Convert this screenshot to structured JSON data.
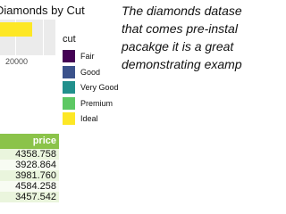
{
  "figure": {
    "title": "Diamonds by Cut",
    "x_tick": "20000",
    "legend_title": "cut",
    "legend": [
      {
        "label": "Fair",
        "color": "#440154"
      },
      {
        "label": "Good",
        "color": "#3b528b"
      },
      {
        "label": "Very Good",
        "color": "#21908c"
      },
      {
        "label": "Premium",
        "color": "#5dc863"
      },
      {
        "label": "Ideal",
        "color": "#fde725"
      }
    ]
  },
  "table": {
    "header": "price",
    "rows": [
      "4358.758",
      "3928.864",
      "3981.760",
      "4584.258",
      "3457.542"
    ]
  },
  "prose": {
    "lines": [
      "The diamonds datase",
      "that comes pre-instal",
      "pacakge it is a great",
      "demonstrating examp"
    ]
  }
}
